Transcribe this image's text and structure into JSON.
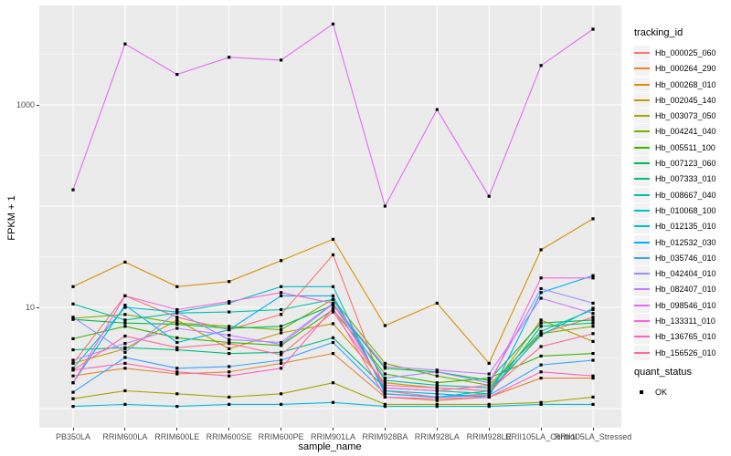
{
  "chart_data": {
    "type": "line",
    "title": "",
    "xlabel": "sample_name",
    "ylabel": "FPKM + 1",
    "x_categories": [
      "PB350LA",
      "RRIM600LA",
      "RRIM600LE",
      "RRIM600SE",
      "RRIM600PE",
      "RRIM901LA",
      "RRIM928BA",
      "RRIM928LA",
      "RRIM928LE",
      "RRII105LA_Control",
      "RRII105LA_Stressed"
    ],
    "y_axis": {
      "scale": "log10",
      "tick_labels": [
        "1000",
        "10"
      ],
      "labeled_breaks": [
        1000,
        10
      ],
      "major_breaks": [
        1,
        10,
        100,
        1000
      ],
      "minor_break_exponents": [
        0.5,
        1.5,
        2.5,
        3.5
      ],
      "ylim": [
        1,
        8000
      ]
    },
    "grid": "on",
    "legend": {
      "title": "tracking_id",
      "position": "right"
    },
    "quant_status_legend": {
      "title": "quant_status",
      "items": [
        {
          "label": "OK",
          "marker": "black-square"
        }
      ]
    },
    "series": [
      {
        "name": "Hb_000025_060",
        "color": "#F8766D",
        "values": [
          2.8,
          13,
          8.0,
          6.0,
          8.5,
          33,
          1.5,
          1.3,
          1.4,
          5.5,
          8.0
        ]
      },
      {
        "name": "Hb_000264_290",
        "color": "#EA8331",
        "values": [
          2.1,
          2.5,
          2.2,
          2.3,
          2.8,
          3.5,
          1.3,
          1.2,
          1.3,
          2.0,
          2.0
        ]
      },
      {
        "name": "Hb_000268_010",
        "color": "#D89000",
        "values": [
          16,
          28,
          16,
          18,
          29,
          47,
          6.6,
          11,
          2.8,
          37,
          75
        ]
      },
      {
        "name": "Hb_002045_140",
        "color": "#C09B00",
        "values": [
          2.8,
          3.9,
          7.5,
          3.9,
          5.6,
          6.9,
          1.8,
          1.6,
          1.5,
          7.5,
          4.6
        ]
      },
      {
        "name": "Hb_003073_050",
        "color": "#A3A500",
        "values": [
          1.25,
          1.5,
          1.4,
          1.3,
          1.4,
          1.8,
          1.1,
          1.1,
          1.1,
          1.15,
          1.3
        ]
      },
      {
        "name": "Hb_004241_040",
        "color": "#7CAE00",
        "values": [
          7.8,
          8.5,
          7.0,
          6.5,
          6.0,
          12,
          2.8,
          2.1,
          1.7,
          5.5,
          6.5
        ]
      },
      {
        "name": "Hb_005511_100",
        "color": "#39B600",
        "values": [
          4.9,
          6.5,
          5.0,
          4.5,
          4.2,
          9.5,
          2.2,
          1.8,
          2.0,
          3.3,
          3.5
        ]
      },
      {
        "name": "Hb_007123_060",
        "color": "#00BB4E",
        "values": [
          7.6,
          7.0,
          6.8,
          6.2,
          6.5,
          10.5,
          2.5,
          2.3,
          1.9,
          7.0,
          7.5
        ]
      },
      {
        "name": "Hb_007333_010",
        "color": "#00BF7D",
        "values": [
          3.8,
          4.0,
          3.8,
          3.5,
          3.6,
          5.0,
          1.6,
          1.5,
          1.4,
          6.5,
          7.0
        ]
      },
      {
        "name": "Hb_008667_040",
        "color": "#00C1A3",
        "values": [
          10.8,
          7.5,
          8.8,
          9.0,
          9.5,
          12,
          1.9,
          1.7,
          1.6,
          5.8,
          9.5
        ]
      },
      {
        "name": "Hb_010068_100",
        "color": "#00BFC4",
        "values": [
          2.5,
          10,
          9.0,
          11,
          16,
          16,
          1.4,
          1.3,
          1.5,
          5.3,
          9.8
        ]
      },
      {
        "name": "Hb_012135_010",
        "color": "#00BAE0",
        "values": [
          1.05,
          1.1,
          1.05,
          1.1,
          1.1,
          1.15,
          1.05,
          1.05,
          1.05,
          1.1,
          1.1
        ]
      },
      {
        "name": "Hb_012532_030",
        "color": "#00B0F6",
        "values": [
          1.8,
          10.5,
          4.5,
          6.0,
          13,
          13,
          1.5,
          1.4,
          1.3,
          14,
          20.6
        ]
      },
      {
        "name": "Hb_035746_010",
        "color": "#35A2FF",
        "values": [
          1.45,
          3.2,
          2.5,
          2.6,
          3.0,
          4.5,
          1.4,
          1.3,
          1.35,
          2.7,
          3.0
        ]
      },
      {
        "name": "Hb_042404_010",
        "color": "#9590FF",
        "values": [
          8.0,
          3.6,
          9.0,
          4.8,
          4.5,
          11,
          2.0,
          2.3,
          1.8,
          15.3,
          11
        ]
      },
      {
        "name": "Hb_082407_010",
        "color": "#C77CFF",
        "values": [
          3.0,
          4.4,
          6.2,
          5.3,
          4.3,
          10.8,
          2.6,
          2.4,
          2.2,
          12.3,
          8.7
        ]
      },
      {
        "name": "Hb_098546_010",
        "color": "#E76BF3",
        "values": [
          145,
          4000,
          2000,
          2950,
          2770,
          6300,
          100,
          900,
          125,
          2450,
          5600
        ]
      },
      {
        "name": "Hb_133311_010",
        "color": "#FA62DB",
        "values": [
          1.8,
          13,
          9.5,
          11.4,
          14,
          11,
          1.6,
          1.5,
          1.7,
          19.5,
          19.5
        ]
      },
      {
        "name": "Hb_136765_010",
        "color": "#FF62BC",
        "values": [
          2.4,
          2.8,
          2.3,
          2.1,
          2.5,
          9.8,
          1.3,
          1.25,
          1.3,
          2.3,
          2.1
        ]
      },
      {
        "name": "Hb_156526_010",
        "color": "#FF6A98",
        "values": [
          2.4,
          5.2,
          4.0,
          4.4,
          3.4,
          9.0,
          1.7,
          1.6,
          1.5,
          4.1,
          5.5
        ]
      }
    ]
  },
  "colors": {
    "panel_background": "#EBEBEB",
    "gridline": "#FFFFFF",
    "axis_text": "#4D4D4D",
    "tick_mark": "#333333",
    "point": "#000000",
    "legend_key_background": "#F2F2F2"
  }
}
